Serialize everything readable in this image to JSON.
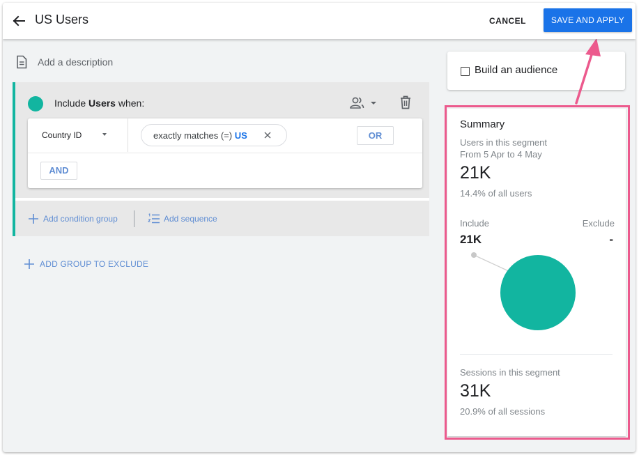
{
  "header": {
    "title": "US Users",
    "cancel_label": "CANCEL",
    "save_label": "SAVE AND APPLY"
  },
  "description": {
    "placeholder": "Add a description"
  },
  "include_group": {
    "prefix": "Include",
    "scope": "Users",
    "suffix": "when:",
    "accent_color": "#12b5a0",
    "condition": {
      "dimension": "Country ID",
      "operator": "exactly matches (=)",
      "value": "US",
      "or_label": "OR"
    },
    "and_label": "AND",
    "add_condition_group": "Add condition group",
    "add_sequence": "Add sequence"
  },
  "exclude": {
    "label": "ADD GROUP TO EXCLUDE"
  },
  "audience": {
    "label": "Build an audience",
    "checked": false
  },
  "summary": {
    "title": "Summary",
    "users_label": "Users in this segment",
    "date_range": "From 5 Apr to 4 May",
    "users_value": "21K",
    "users_pct": "14.4% of all users",
    "include_label": "Include",
    "exclude_label": "Exclude",
    "include_value": "21K",
    "exclude_value": "-",
    "sessions_label": "Sessions in this segment",
    "sessions_value": "31K",
    "sessions_pct": "20.9% of all sessions",
    "highlight_color": "#ec5a8d"
  },
  "colors": {
    "primary_blue": "#1a73e8",
    "link_blue": "#5f8dd3",
    "teal": "#12b5a0",
    "annotation_pink": "#ec5a8d"
  }
}
